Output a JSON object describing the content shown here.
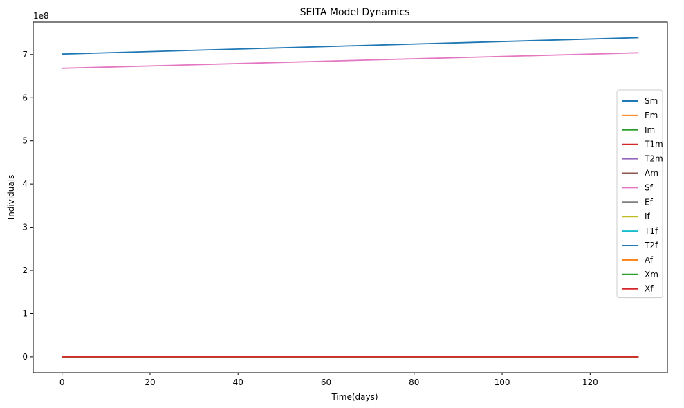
{
  "chart_data": {
    "type": "line",
    "title": "SEITA Model Dynamics",
    "xlabel": "Time(days)",
    "ylabel": "Individuals",
    "y_offset_label": "1e8",
    "xlim": [
      -6.55,
      137.55
    ],
    "ylim": [
      -3.7,
      77.5
    ],
    "y_scale_factor": 100000000,
    "x_ticks": [
      0,
      20,
      40,
      60,
      80,
      100,
      120
    ],
    "x_tick_labels": [
      "0",
      "20",
      "40",
      "60",
      "80",
      "100",
      "120"
    ],
    "y_ticks": [
      0,
      10,
      20,
      30,
      40,
      50,
      60,
      70
    ],
    "y_tick_labels": [
      "0",
      "1",
      "2",
      "3",
      "4",
      "5",
      "6",
      "7"
    ],
    "grid": false,
    "legend_position": "center-right",
    "x": [
      0,
      131
    ],
    "series": [
      {
        "name": "Sm",
        "color": "#1f77b4",
        "values": [
          70.1,
          73.9
        ]
      },
      {
        "name": "Em",
        "color": "#ff7f0e",
        "values": [
          0,
          0
        ]
      },
      {
        "name": "Im",
        "color": "#2ca02c",
        "values": [
          0,
          0
        ]
      },
      {
        "name": "T1m",
        "color": "#d62728",
        "values": [
          0,
          0
        ]
      },
      {
        "name": "T2m",
        "color": "#9467bd",
        "values": [
          0,
          0
        ]
      },
      {
        "name": "Am",
        "color": "#8c564b",
        "values": [
          0,
          0
        ]
      },
      {
        "name": "Sf",
        "color": "#e377c2",
        "values": [
          66.8,
          70.4
        ]
      },
      {
        "name": "Ef",
        "color": "#7f7f7f",
        "values": [
          0,
          0
        ]
      },
      {
        "name": "If",
        "color": "#bcbd22",
        "values": [
          0,
          0
        ]
      },
      {
        "name": "T1f",
        "color": "#17becf",
        "values": [
          0,
          0
        ]
      },
      {
        "name": "T2f",
        "color": "#1f77b4",
        "values": [
          0,
          0
        ]
      },
      {
        "name": "Af",
        "color": "#ff7f0e",
        "values": [
          0,
          0
        ]
      },
      {
        "name": "Xm",
        "color": "#2ca02c",
        "values": [
          0,
          0
        ]
      },
      {
        "name": "Xf",
        "color": "#d62728",
        "values": [
          0,
          0
        ]
      }
    ]
  }
}
